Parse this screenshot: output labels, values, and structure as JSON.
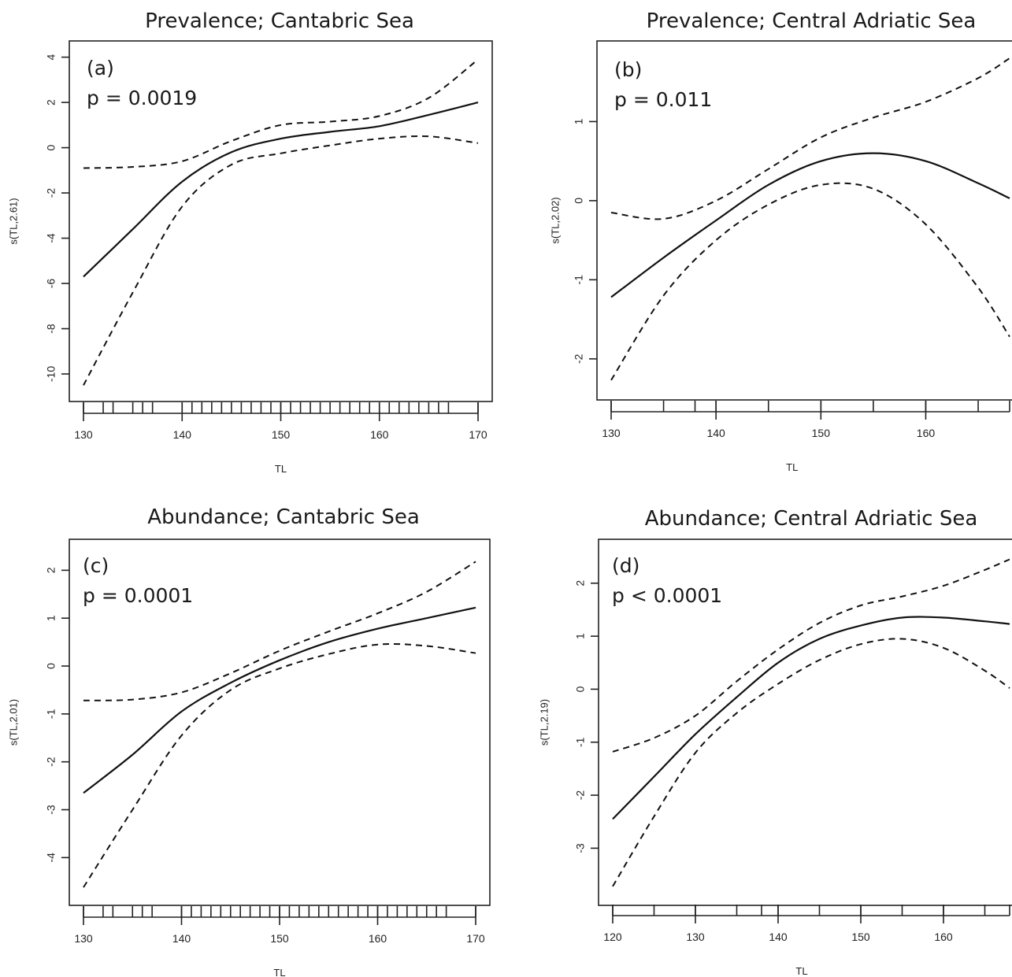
{
  "chart_data": [
    {
      "type": "line",
      "title": "Prevalence; Cantabric Sea",
      "panel_label": "(a)",
      "p_text": "p = 0.0019",
      "xlabel": "TL",
      "ylabel": "s(TL,2.61)",
      "xlim": [
        130,
        170
      ],
      "ylim": [
        -10.8,
        4.3
      ],
      "x_ticks": [
        130,
        140,
        150,
        160,
        170
      ],
      "y_ticks": [
        -10,
        -8,
        -6,
        -4,
        -2,
        0,
        2,
        4
      ],
      "y_tick_labels": [
        "-10",
        "-8",
        "-6",
        "-4",
        "-2",
        "0",
        "2",
        "4"
      ],
      "rug": [
        130,
        132,
        133,
        135,
        136,
        137,
        140,
        141,
        142,
        143,
        144,
        145,
        146,
        147,
        148,
        149,
        150,
        151,
        152,
        153,
        154,
        155,
        156,
        157,
        158,
        159,
        160,
        161,
        162,
        163,
        164,
        165,
        166,
        167,
        170
      ],
      "x": [
        130,
        135,
        140,
        145,
        150,
        155,
        160,
        165,
        170
      ],
      "series": [
        {
          "values": [
            -5.7,
            -3.6,
            -1.5,
            -0.2,
            0.4,
            0.7,
            0.95,
            1.45,
            2.0
          ]
        },
        {
          "values": [
            -0.9,
            -0.85,
            -0.6,
            0.3,
            1.0,
            1.15,
            1.4,
            2.2,
            3.9
          ]
        },
        {
          "values": [
            -10.5,
            -6.4,
            -2.6,
            -0.75,
            -0.25,
            0.1,
            0.4,
            0.5,
            0.2
          ]
        }
      ]
    },
    {
      "type": "line",
      "title": "Prevalence; Central Adriatic Sea",
      "panel_label": "(b)",
      "p_text": "p = 0.011",
      "xlabel": "TL",
      "ylabel": "s(TL,2.02)",
      "xlim": [
        130,
        168
      ],
      "ylim": [
        -2.4,
        1.9
      ],
      "x_ticks": [
        130,
        140,
        150,
        160
      ],
      "y_ticks": [
        -2,
        -1,
        0,
        1
      ],
      "y_tick_labels": [
        "-2",
        "-1",
        "0",
        "1"
      ],
      "rug": [
        130,
        135,
        138,
        140,
        145,
        150,
        155,
        160,
        165,
        168
      ],
      "x": [
        130,
        135,
        140,
        145,
        150,
        155,
        160,
        165,
        168
      ],
      "series": [
        {
          "values": [
            -1.22,
            -0.72,
            -0.25,
            0.2,
            0.5,
            0.6,
            0.5,
            0.22,
            0.03
          ]
        },
        {
          "values": [
            -0.15,
            -0.23,
            0.0,
            0.4,
            0.8,
            1.05,
            1.25,
            1.55,
            1.8
          ]
        },
        {
          "values": [
            -2.27,
            -1.2,
            -0.5,
            -0.05,
            0.2,
            0.15,
            -0.3,
            -1.1,
            -1.72
          ]
        }
      ]
    },
    {
      "type": "line",
      "title": "Abundance; Cantabric Sea",
      "panel_label": "(c)",
      "p_text": "p = 0.0001",
      "xlabel": "TL",
      "ylabel": "s(TL,2.01)",
      "xlim": [
        130,
        170
      ],
      "ylim": [
        -4.8,
        2.45
      ],
      "x_ticks": [
        130,
        140,
        150,
        160,
        170
      ],
      "y_ticks": [
        -4,
        -3,
        -2,
        -1,
        0,
        1,
        2
      ],
      "y_tick_labels": [
        "-4",
        "-3",
        "-2",
        "-1",
        "0",
        "1",
        "2"
      ],
      "rug": [
        130,
        132,
        133,
        135,
        136,
        137,
        140,
        141,
        142,
        143,
        144,
        145,
        146,
        147,
        148,
        149,
        150,
        151,
        152,
        153,
        154,
        155,
        156,
        157,
        158,
        159,
        160,
        161,
        162,
        163,
        164,
        165,
        166,
        167,
        170
      ],
      "x": [
        130,
        135,
        140,
        145,
        150,
        155,
        160,
        165,
        170
      ],
      "series": [
        {
          "values": [
            -2.65,
            -1.85,
            -0.95,
            -0.35,
            0.12,
            0.5,
            0.78,
            1.0,
            1.22
          ]
        },
        {
          "values": [
            -0.72,
            -0.7,
            -0.55,
            -0.15,
            0.32,
            0.72,
            1.1,
            1.55,
            2.18
          ]
        },
        {
          "values": [
            -4.62,
            -3.0,
            -1.45,
            -0.5,
            -0.05,
            0.25,
            0.45,
            0.42,
            0.27
          ]
        }
      ]
    },
    {
      "type": "line",
      "title": "Abundance; Central Adriatic Sea",
      "panel_label": "(d)",
      "p_text": "p < 0.0001",
      "xlabel": "TL",
      "ylabel": "s(TL,2.19)",
      "xlim": [
        120,
        168
      ],
      "ylim": [
        -3.9,
        2.65
      ],
      "x_ticks": [
        120,
        130,
        140,
        150,
        160
      ],
      "y_ticks": [
        -3,
        -2,
        -1,
        0,
        1,
        2
      ],
      "y_tick_labels": [
        "-3",
        "-2",
        "-1",
        "0",
        "1",
        "2"
      ],
      "rug": [
        120,
        125,
        130,
        135,
        138,
        140,
        145,
        150,
        155,
        160,
        165,
        168
      ],
      "x": [
        120,
        125,
        130,
        135,
        140,
        145,
        150,
        155,
        160,
        165,
        168
      ],
      "series": [
        {
          "values": [
            -2.45,
            -1.65,
            -0.85,
            -0.15,
            0.5,
            0.95,
            1.2,
            1.35,
            1.35,
            1.28,
            1.23
          ]
        },
        {
          "values": [
            -1.18,
            -0.92,
            -0.5,
            0.15,
            0.75,
            1.25,
            1.58,
            1.75,
            1.95,
            2.25,
            2.45
          ]
        },
        {
          "values": [
            -3.72,
            -2.4,
            -1.2,
            -0.45,
            0.1,
            0.55,
            0.85,
            0.95,
            0.78,
            0.35,
            0.02
          ]
        }
      ]
    }
  ]
}
